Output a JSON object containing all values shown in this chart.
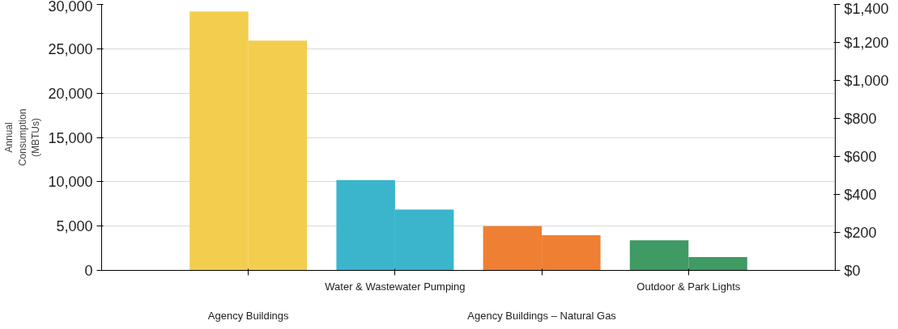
{
  "chart_data": {
    "type": "bar",
    "ylabel": "Annual Consumption (MBTUs)",
    "categories": [
      "Agency Buildings",
      "Water & Wastewater Pumping",
      "Agency Buildings – Natural Gas",
      "Outdoor & Park Lights"
    ],
    "series": [
      {
        "colors": [
          "#f2cd4e",
          "#3ab5cc",
          "#ef7f33",
          "#3f9a64"
        ],
        "values": [
          29200,
          10200,
          5000,
          3400
        ]
      },
      {
        "colors": [
          "#f2cd4e",
          "#3ab5cc",
          "#ef7f33",
          "#3f9a64"
        ],
        "values": [
          1210,
          320,
          185,
          70
        ],
        "axis": "y2"
      }
    ],
    "ylim": [
      0,
      30000
    ],
    "yticks": [
      0,
      {
        "value": 5000,
        "label": "5,000"
      },
      {
        "value": 10000,
        "label": "10,000"
      },
      {
        "value": 15000,
        "label": "15,000"
      },
      {
        "value": 20000,
        "label": "20,000"
      },
      {
        "value": 25000,
        "label": "25,000"
      },
      {
        "value": 30000,
        "label": "30,000"
      }
    ],
    "y2lim": [
      0,
      1400
    ],
    "y2ticks": [
      {
        "value": 0,
        "label": "$0"
      },
      {
        "value": 200,
        "label": "$200"
      },
      {
        "value": 400,
        "label": "$400"
      },
      {
        "value": 600,
        "label": "$600"
      },
      {
        "value": 800,
        "label": "$800"
      },
      {
        "value": 1000,
        "label": "$1,000"
      },
      {
        "value": 1200,
        "label": "$1,200"
      },
      {
        "value": 1400,
        "label": "$1,400"
      }
    ],
    "grid": "y"
  }
}
